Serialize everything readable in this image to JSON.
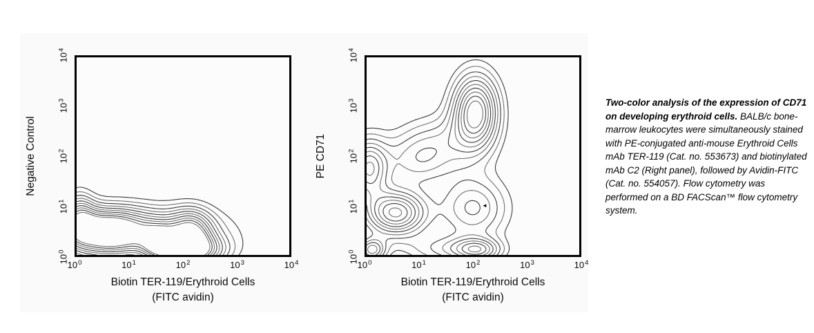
{
  "figure": {
    "page_bg_color": "#ffffff",
    "scan_bg_color": "#fafafa",
    "frame_color": "#000000",
    "caption": {
      "bold_text": "Two-color analysis of the expression of  CD71 on developing erythroid cells. ",
      "body_text": "BALB/c bone-marrow leukocytes were simultaneously stained with PE-conjugated anti-mouse Erythroid Cells mAb TER-119 (Cat. no. 553673) and biotinylated mAb C2 (Right panel), followed by Avidin-FITC (Cat. no. 554057). Flow cytometry was performed on a BD FACScan™ flow cytometry system."
    }
  },
  "chart_data": [
    {
      "type": "contour",
      "panel": "left",
      "xlabel_line1": "Biotin TER-119/Erythroid Cells",
      "xlabel_line2": "(FITC avidin)",
      "ylabel": "Negative Control",
      "xscale": "log",
      "yscale": "log",
      "xlim": [
        1,
        10000
      ],
      "ylim": [
        1,
        10000
      ],
      "grid": false,
      "xticks": [
        {
          "base": "10",
          "exp": "0"
        },
        {
          "base": "10",
          "exp": "1"
        },
        {
          "base": "10",
          "exp": "2"
        },
        {
          "base": "10",
          "exp": "3"
        },
        {
          "base": "10",
          "exp": "4"
        }
      ],
      "yticks": [
        {
          "base": "10",
          "exp": "0"
        },
        {
          "base": "10",
          "exp": "1"
        },
        {
          "base": "10",
          "exp": "2"
        },
        {
          "base": "10",
          "exp": "3"
        },
        {
          "base": "10",
          "exp": "4"
        }
      ],
      "line_color": "#3a3a3a",
      "line_color_alt": "#707070",
      "levels": [
        0.16,
        0.25,
        0.34,
        0.43,
        0.52,
        0.61,
        0.7,
        0.79,
        0.88,
        0.97
      ],
      "units_note": "population centers/sigmas in log10 decades of fluorescence intensity",
      "populations": [
        {
          "cx": 0.55,
          "cy": 0.45,
          "sx": 0.55,
          "sy": 0.33,
          "amp": 1.0
        },
        {
          "cx": 2.15,
          "cy": 0.08,
          "sx": 0.45,
          "sy": 0.22,
          "amp": 0.85
        },
        {
          "cx": 1.55,
          "cy": 0.25,
          "sx": 0.22,
          "sy": 0.25,
          "amp": 0.6
        },
        {
          "cx": 2.15,
          "cy": 0.45,
          "sx": 0.28,
          "sy": 0.33,
          "amp": 0.7
        },
        {
          "cx": 1.3,
          "cy": 0.5,
          "sx": 1.1,
          "sy": 0.36,
          "amp": 0.5
        },
        {
          "cx": 0.05,
          "cy": 0.8,
          "sx": 0.2,
          "sy": 0.35,
          "amp": 0.5
        }
      ]
    },
    {
      "type": "contour",
      "panel": "right",
      "xlabel_line1": "Biotin TER-119/Erythroid Cells",
      "xlabel_line2": "(FITC avidin)",
      "ylabel": "PE CD71",
      "xscale": "log",
      "yscale": "log",
      "xlim": [
        1,
        10000
      ],
      "ylim": [
        1,
        10000
      ],
      "grid": false,
      "xticks": [
        {
          "base": "10",
          "exp": "0"
        },
        {
          "base": "10",
          "exp": "1"
        },
        {
          "base": "10",
          "exp": "2"
        },
        {
          "base": "10",
          "exp": "3"
        },
        {
          "base": "10",
          "exp": "4"
        }
      ],
      "yticks": [
        {
          "base": "10",
          "exp": "0"
        },
        {
          "base": "10",
          "exp": "1"
        },
        {
          "base": "10",
          "exp": "2"
        },
        {
          "base": "10",
          "exp": "3"
        },
        {
          "base": "10",
          "exp": "4"
        }
      ],
      "line_color": "#3a3a3a",
      "line_color_alt": "#707070",
      "levels": [
        0.13,
        0.21,
        0.3,
        0.39,
        0.48,
        0.57,
        0.66,
        0.75,
        0.84,
        0.93
      ],
      "units_note": "population centers/sigmas in log10 decades of fluorescence intensity",
      "populations": [
        {
          "cx": 2.05,
          "cy": 2.9,
          "sx": 0.3,
          "sy": 0.52,
          "amp": 1.0
        },
        {
          "cx": 1.35,
          "cy": 2.25,
          "sx": 0.55,
          "sy": 0.4,
          "amp": 0.33
        },
        {
          "cx": 0.9,
          "cy": 1.85,
          "sx": 0.45,
          "sy": 0.35,
          "amp": 0.3
        },
        {
          "cx": 0.03,
          "cy": 1.75,
          "sx": 0.26,
          "sy": 0.42,
          "amp": 0.72
        },
        {
          "cx": 0.55,
          "cy": 0.85,
          "sx": 0.4,
          "sy": 0.32,
          "amp": 0.95
        },
        {
          "cx": 0.1,
          "cy": 0.1,
          "sx": 0.18,
          "sy": 0.16,
          "amp": 0.6
        },
        {
          "cx": 2.1,
          "cy": 0.1,
          "sx": 0.3,
          "sy": 0.16,
          "amp": 0.55
        },
        {
          "cx": 2.0,
          "cy": 0.95,
          "sx": 0.45,
          "sy": 0.45,
          "amp": 0.5
        },
        {
          "cx": 1.5,
          "cy": 0.12,
          "sx": 0.5,
          "sy": 0.2,
          "amp": 0.3
        }
      ],
      "marker": {
        "x_log": 2.22,
        "y_log": 1.0,
        "glyph": "◄"
      }
    }
  ]
}
